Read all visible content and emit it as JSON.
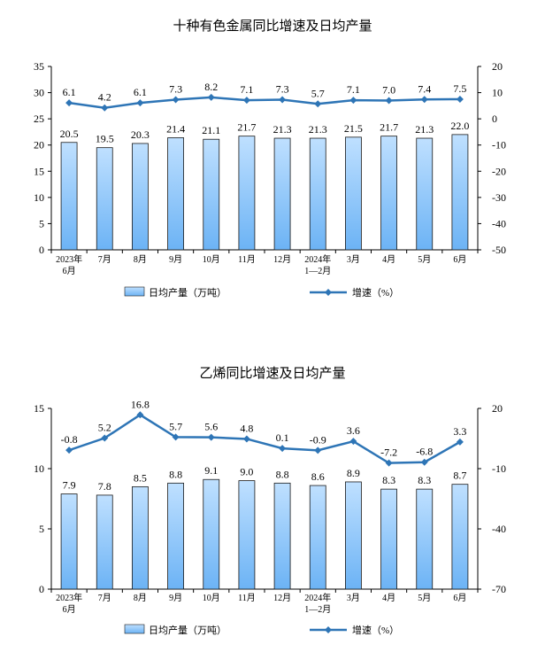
{
  "charts": [
    {
      "title": "十种有色金属同比增速及日均产量",
      "legend_bar": "日均产量（万吨）",
      "legend_line": "增速（%）"
    },
    {
      "title": "乙烯同比增速及日均产量",
      "legend_bar": "日均产量（万吨）",
      "legend_line": "增速（%）"
    }
  ],
  "colors": {
    "bar_fill_top": "#bfe0ff",
    "bar_fill_bottom": "#6cb3f5",
    "bar_stroke": "#1a1a1a",
    "line": "#2e75b6",
    "axis": "#000000"
  },
  "chart_data": [
    {
      "type": "bar+line",
      "title": "十种有色金属同比增速及日均产量",
      "categories": [
        [
          "2023年",
          "6月"
        ],
        [
          "7月"
        ],
        [
          "8月"
        ],
        [
          "9月"
        ],
        [
          "10月"
        ],
        [
          "11月"
        ],
        [
          "12月"
        ],
        [
          "2024年",
          "1—2月"
        ],
        [
          "3月"
        ],
        [
          "4月"
        ],
        [
          "5月"
        ],
        [
          "6月"
        ]
      ],
      "series": [
        {
          "name": "日均产量（万吨）",
          "axis": "left",
          "kind": "bar",
          "values": [
            20.5,
            19.5,
            20.3,
            21.4,
            21.1,
            21.7,
            21.3,
            21.3,
            21.5,
            21.7,
            21.3,
            22.0
          ],
          "labels": [
            "20.5",
            "19.5",
            "20.3",
            "21.4",
            "21.1",
            "21.7",
            "21.3",
            "21.3",
            "21.5",
            "21.7",
            "21.3",
            "22.0"
          ]
        },
        {
          "name": "增速（%）",
          "axis": "right",
          "kind": "line",
          "values": [
            6.1,
            4.2,
            6.1,
            7.3,
            8.2,
            7.1,
            7.3,
            5.7,
            7.1,
            7.0,
            7.4,
            7.5
          ],
          "labels": [
            "6.1",
            "4.2",
            "6.1",
            "7.3",
            "8.2",
            "7.1",
            "7.3",
            "5.7",
            "7.1",
            "7.0",
            "7.4",
            "7.5"
          ]
        }
      ],
      "y_left": {
        "min": 0,
        "max": 35,
        "step": 5,
        "ticks": [
          "0",
          "5",
          "10",
          "15",
          "20",
          "25",
          "30",
          "35"
        ]
      },
      "y_right": {
        "min": -50,
        "max": 20,
        "step": 10,
        "ticks": [
          "-50",
          "-40",
          "-30",
          "-20",
          "-10",
          "0",
          "10",
          "20"
        ]
      }
    },
    {
      "type": "bar+line",
      "title": "乙烯同比增速及日均产量",
      "categories": [
        [
          "2023年",
          "6月"
        ],
        [
          "7月"
        ],
        [
          "8月"
        ],
        [
          "9月"
        ],
        [
          "10月"
        ],
        [
          "11月"
        ],
        [
          "12月"
        ],
        [
          "2024年",
          "1—2月"
        ],
        [
          "3月"
        ],
        [
          "4月"
        ],
        [
          "5月"
        ],
        [
          "6月"
        ]
      ],
      "series": [
        {
          "name": "日均产量（万吨）",
          "axis": "left",
          "kind": "bar",
          "values": [
            7.9,
            7.8,
            8.5,
            8.8,
            9.1,
            9.0,
            8.8,
            8.6,
            8.9,
            8.3,
            8.3,
            8.7
          ],
          "labels": [
            "7.9",
            "7.8",
            "8.5",
            "8.8",
            "9.1",
            "9.0",
            "8.8",
            "8.6",
            "8.9",
            "8.3",
            "8.3",
            "8.7"
          ]
        },
        {
          "name": "增速（%）",
          "axis": "right",
          "kind": "line",
          "values": [
            -0.8,
            5.2,
            16.8,
            5.7,
            5.6,
            4.8,
            0.1,
            -0.9,
            3.6,
            -7.2,
            -6.8,
            3.3
          ],
          "labels": [
            "-0.8",
            "5.2",
            "16.8",
            "5.7",
            "5.6",
            "4.8",
            "0.1",
            "-0.9",
            "3.6",
            "-7.2",
            "-6.8",
            "3.3"
          ]
        }
      ],
      "y_left": {
        "min": 0,
        "max": 15,
        "step": 5,
        "ticks": [
          "0",
          "5",
          "10",
          "15"
        ]
      },
      "y_right": {
        "min": -70,
        "max": 20,
        "step": 30,
        "ticks": [
          "-70",
          "-40",
          "-10",
          "20"
        ]
      }
    }
  ]
}
